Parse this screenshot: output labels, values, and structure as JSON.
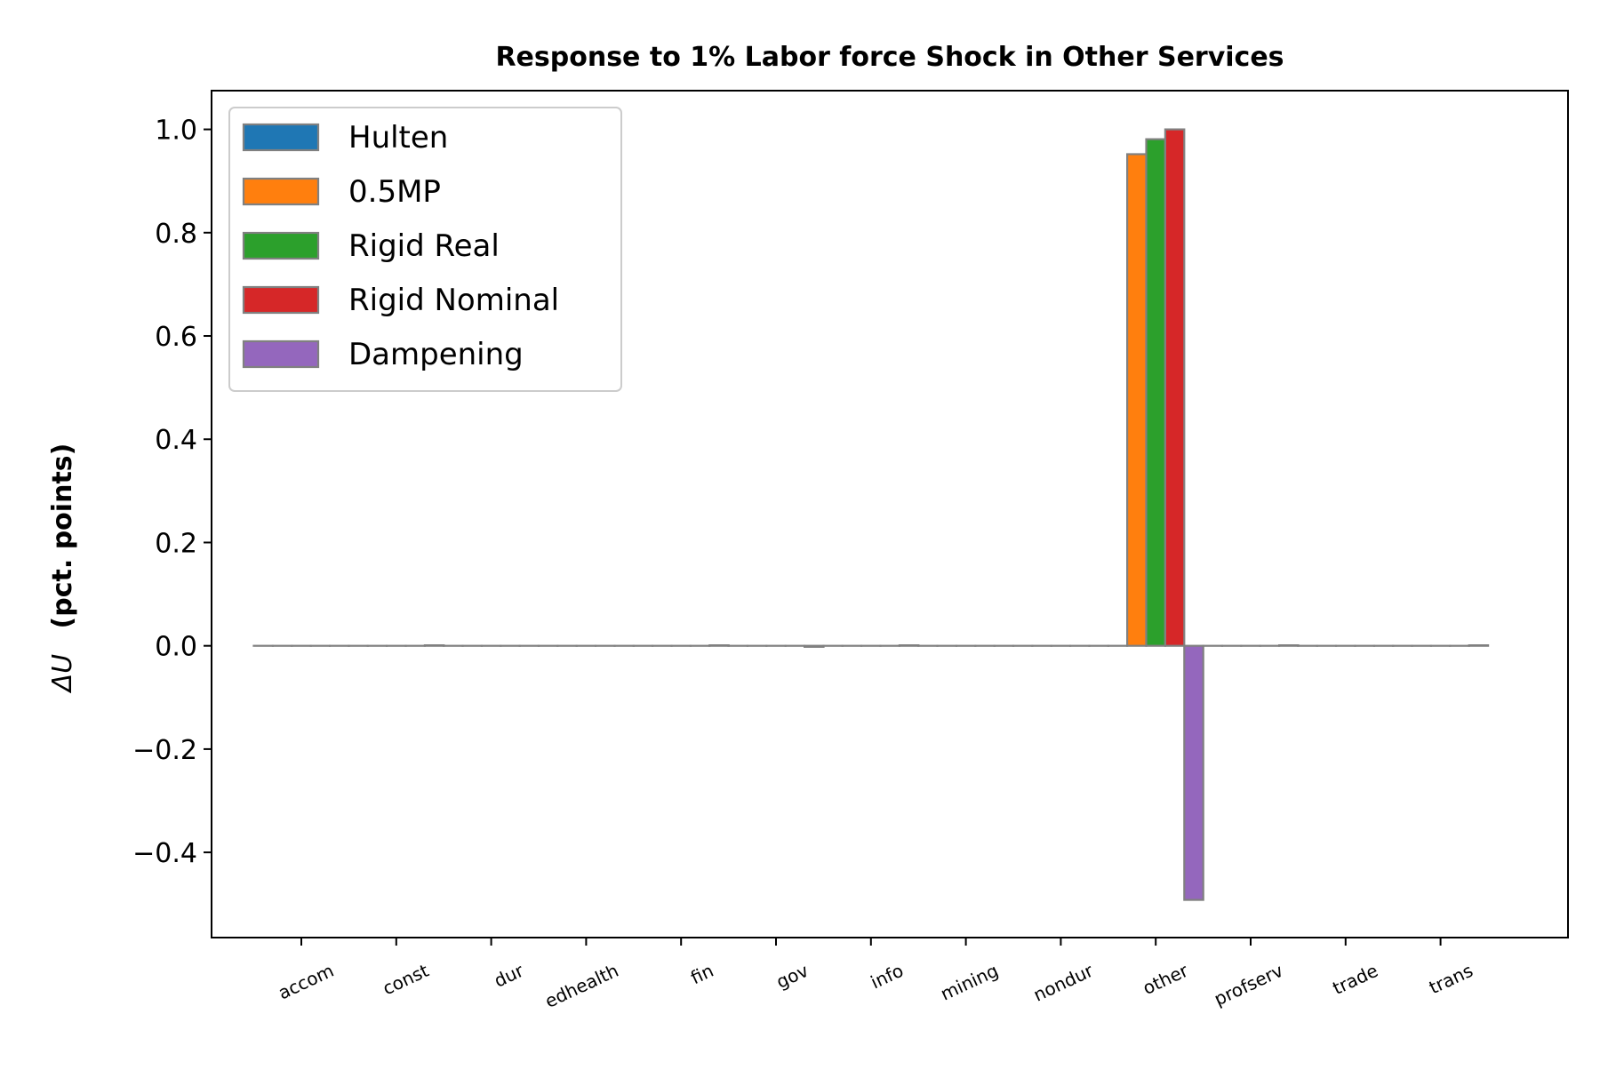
{
  "chart_data": {
    "type": "bar",
    "title": "Response to 1% Labor force Shock in Other Services",
    "ylabel_symbol": "ΔU",
    "ylabel_unit": "(pct. points)",
    "xlabel": "",
    "ylim": [
      -0.565,
      1.075
    ],
    "yticks": [
      -0.4,
      -0.2,
      0.0,
      0.2,
      0.4,
      0.6,
      0.8,
      1.0
    ],
    "ytick_labels": [
      "−0.4",
      "−0.2",
      "0.0",
      "0.2",
      "0.4",
      "0.6",
      "0.8",
      "1.0"
    ],
    "categories": [
      "accom",
      "const",
      "dur",
      "edhealth",
      "fin",
      "gov",
      "info",
      "mining",
      "nondur",
      "other",
      "profserv",
      "trade",
      "trans"
    ],
    "series": [
      {
        "name": "Hulten",
        "color": "#1f77b4",
        "values": [
          0,
          0,
          0,
          0,
          0,
          0,
          0,
          0,
          0,
          0,
          0,
          0,
          0
        ]
      },
      {
        "name": "0.5MP",
        "color": "#ff7f0e",
        "values": [
          0,
          0,
          0,
          0,
          0,
          0,
          0,
          0,
          0,
          0.952,
          0,
          0,
          0
        ]
      },
      {
        "name": "Rigid Real",
        "color": "#2ca02c",
        "values": [
          0,
          0,
          0,
          0,
          0,
          0,
          0,
          0,
          0,
          0.981,
          0,
          0,
          0
        ]
      },
      {
        "name": "Rigid Nominal",
        "color": "#d62728",
        "values": [
          0,
          0,
          0,
          0,
          0,
          0,
          0,
          0,
          0,
          1.0,
          0,
          0,
          0
        ]
      },
      {
        "name": "Dampening",
        "color": "#9467bd",
        "values": [
          0,
          0.001,
          0,
          0,
          0.001,
          -0.002,
          0.001,
          0,
          0,
          -0.492,
          0.001,
          0,
          0.001
        ]
      }
    ],
    "grid": false,
    "legend_position": "upper-left",
    "bar_edge_color": "#808080"
  }
}
